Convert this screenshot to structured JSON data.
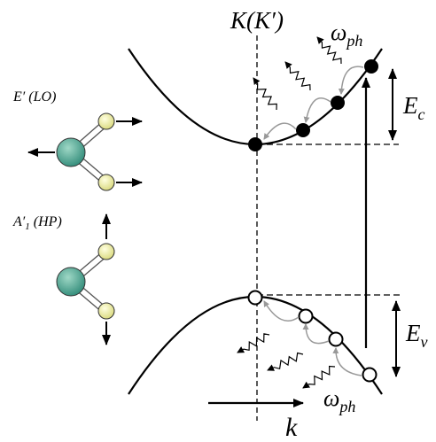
{
  "labels": {
    "k_point": "K(K′)",
    "phonon_top": {
      "symbol": "ω",
      "sub": "ph"
    },
    "phonon_bottom": {
      "symbol": "ω",
      "sub": "ph"
    },
    "conduction_gap": {
      "symbol": "E",
      "sub": "c"
    },
    "valence_gap": {
      "symbol": "E",
      "sub": "v"
    },
    "momentum": "k"
  },
  "modes": [
    {
      "name": "E′",
      "paren": "(LO)"
    },
    {
      "name": "A′",
      "sub": "1",
      "paren": "(HP)"
    }
  ]
}
